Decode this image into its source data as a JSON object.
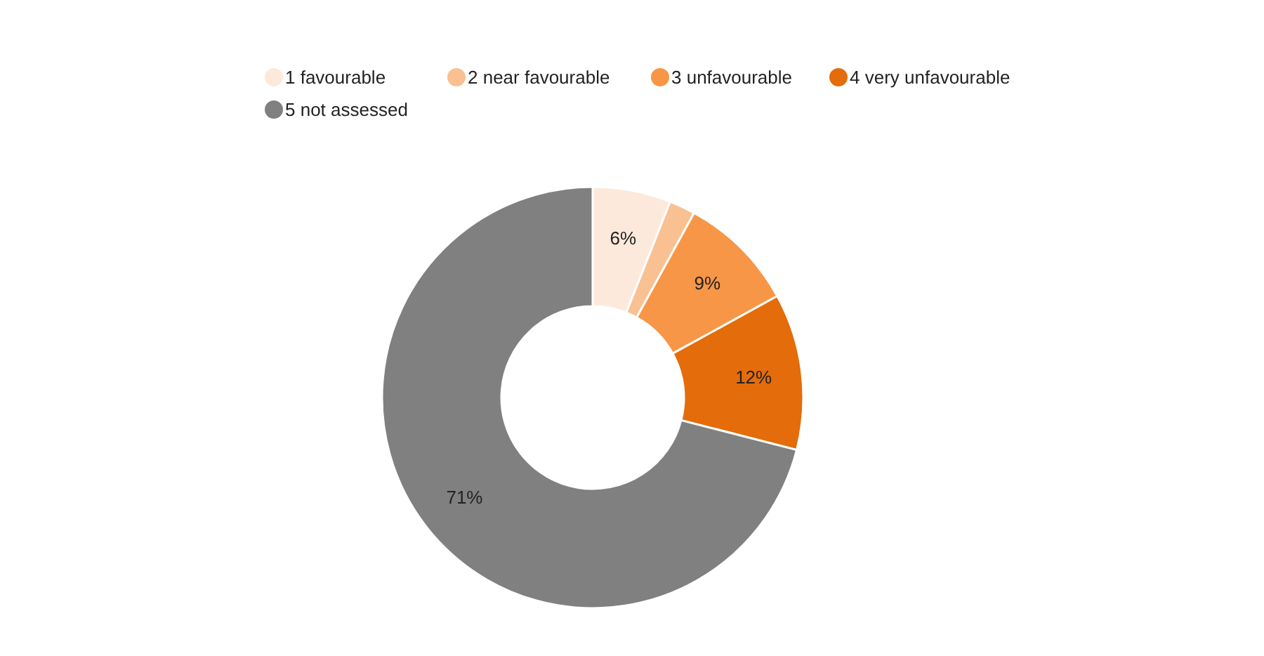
{
  "chart_data": {
    "type": "donut",
    "categories": [
      "1 favourable",
      "2 near favourable",
      "3 unfavourable",
      "4 very unfavourable",
      "5 not assessed"
    ],
    "values": [
      6,
      2,
      9,
      12,
      71
    ],
    "colors": [
      "#fde9dc",
      "#f9c091",
      "#f79646",
      "#e46c0a",
      "#808080"
    ],
    "value_labels": [
      "6%",
      null,
      "9%",
      "12%",
      "71%"
    ],
    "legend": "top"
  }
}
